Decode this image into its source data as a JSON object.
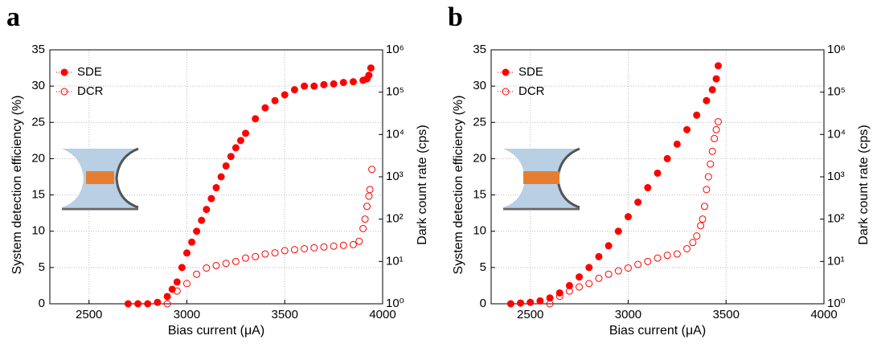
{
  "chart_data": [
    {
      "type": "scatter",
      "label": "a",
      "xlabel": "Bias current (μA)",
      "ylabel": "System detection efficiency (%)",
      "y2label": "Dark count rate (cps)",
      "xlim": [
        2300,
        4000
      ],
      "xticks": [
        2500,
        3000,
        3500,
        4000
      ],
      "ylim": [
        0,
        35
      ],
      "yticks": [
        0,
        5,
        10,
        15,
        20,
        25,
        30,
        35
      ],
      "y2lim": [
        1,
        1000000
      ],
      "y2scale": "log",
      "y2ticks": [
        {
          "value": 1,
          "label": "10⁰"
        },
        {
          "value": 10,
          "label": "10¹"
        },
        {
          "value": 100,
          "label": "10²"
        },
        {
          "value": 1000,
          "label": "10³"
        },
        {
          "value": 10000,
          "label": "10⁴"
        },
        {
          "value": 100000,
          "label": "10⁵"
        },
        {
          "value": 1000000,
          "label": "10⁶"
        }
      ],
      "grid": true,
      "legend": "upper left",
      "series": [
        {
          "name": "SDE",
          "color": "#ff0000",
          "marker": "filled",
          "x": [
            2700,
            2750,
            2800,
            2850,
            2900,
            2925,
            2950,
            2975,
            3000,
            3025,
            3050,
            3075,
            3100,
            3125,
            3150,
            3175,
            3200,
            3225,
            3250,
            3275,
            3300,
            3350,
            3400,
            3450,
            3500,
            3550,
            3600,
            3650,
            3700,
            3750,
            3800,
            3850,
            3900,
            3920,
            3930,
            3940
          ],
          "values": [
            0,
            0,
            0,
            0.2,
            1,
            2,
            3,
            5,
            7,
            8.5,
            10,
            11.5,
            13,
            14.5,
            16,
            17.5,
            19,
            20.3,
            21.5,
            22.5,
            23.5,
            25.5,
            27,
            28,
            28.8,
            29.5,
            30,
            30,
            30.2,
            30.3,
            30.5,
            30.6,
            30.8,
            31,
            31.5,
            32.5
          ]
        },
        {
          "name": "DCR",
          "color": "#ff0000",
          "marker": "open",
          "axis": "y2",
          "x": [
            2900,
            2950,
            3000,
            3050,
            3100,
            3150,
            3200,
            3250,
            3300,
            3350,
            3400,
            3450,
            3500,
            3550,
            3600,
            3650,
            3700,
            3750,
            3800,
            3850,
            3880,
            3900,
            3910,
            3920,
            3930,
            3935,
            3945
          ],
          "values": [
            1,
            2,
            3,
            5,
            7,
            8,
            9,
            10,
            12,
            13,
            15,
            16,
            18,
            19,
            20,
            21,
            22,
            23,
            24,
            25,
            30,
            60,
            100,
            200,
            350,
            500,
            1500
          ]
        }
      ]
    },
    {
      "type": "scatter",
      "label": "b",
      "xlabel": "Bias current (μA)",
      "ylabel": "System detection efficiency (%)",
      "y2label": "Dark count rate (cps)",
      "xlim": [
        2300,
        4000
      ],
      "xticks": [
        2500,
        3000,
        3500,
        4000
      ],
      "ylim": [
        0,
        35
      ],
      "yticks": [
        0,
        5,
        10,
        15,
        20,
        25,
        30,
        35
      ],
      "y2lim": [
        1,
        1000000
      ],
      "y2scale": "log",
      "y2ticks": [
        {
          "value": 1,
          "label": "10⁰"
        },
        {
          "value": 10,
          "label": "10¹"
        },
        {
          "value": 100,
          "label": "10²"
        },
        {
          "value": 1000,
          "label": "10³"
        },
        {
          "value": 10000,
          "label": "10⁴"
        },
        {
          "value": 100000,
          "label": "10⁵"
        },
        {
          "value": 1000000,
          "label": "10⁶"
        }
      ],
      "grid": true,
      "legend": "upper left",
      "series": [
        {
          "name": "SDE",
          "color": "#ff0000",
          "marker": "filled",
          "x": [
            2400,
            2450,
            2500,
            2550,
            2600,
            2650,
            2700,
            2750,
            2800,
            2850,
            2900,
            2950,
            3000,
            3050,
            3100,
            3150,
            3200,
            3250,
            3300,
            3350,
            3400,
            3430,
            3450,
            3460
          ],
          "values": [
            0,
            0.1,
            0.2,
            0.4,
            0.8,
            1.5,
            2.5,
            3.7,
            5,
            6.5,
            8,
            10,
            12,
            14,
            16,
            18,
            20,
            22,
            24,
            26,
            28,
            29.5,
            31,
            32.8
          ]
        },
        {
          "name": "DCR",
          "color": "#ff0000",
          "marker": "open",
          "axis": "y2",
          "x": [
            2600,
            2650,
            2700,
            2750,
            2800,
            2850,
            2900,
            2950,
            3000,
            3050,
            3100,
            3150,
            3200,
            3250,
            3300,
            3330,
            3350,
            3370,
            3380,
            3390,
            3400,
            3410,
            3420,
            3430,
            3440,
            3450,
            3460
          ],
          "values": [
            1,
            1.5,
            2,
            2.5,
            3,
            4,
            5,
            6,
            7,
            8.5,
            10,
            12,
            14,
            15,
            20,
            28,
            40,
            70,
            100,
            200,
            500,
            1000,
            2000,
            4000,
            8000,
            13000,
            20000
          ]
        }
      ]
    }
  ]
}
